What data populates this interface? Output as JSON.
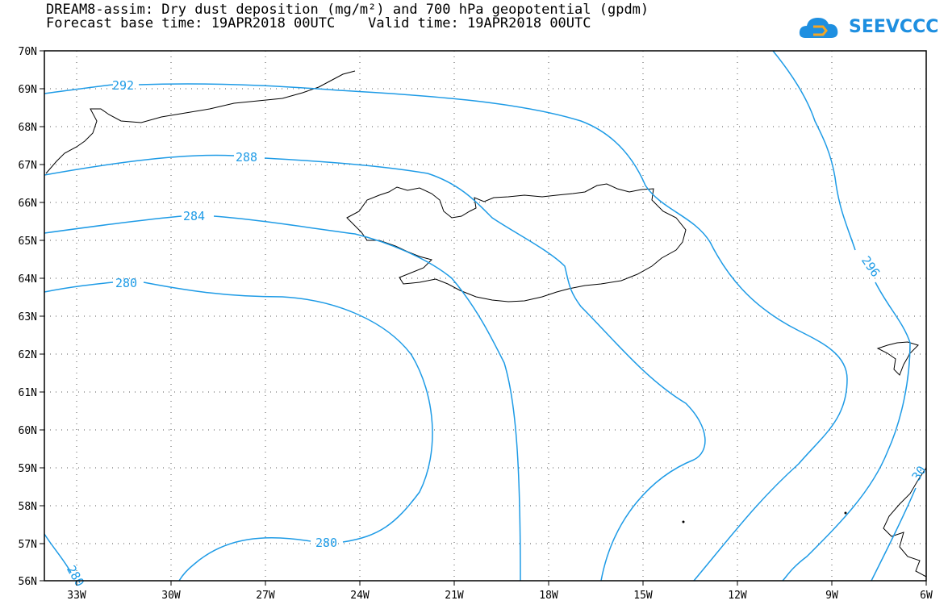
{
  "header": {
    "line1": "DREAM8-assim: Dry dust deposition (mg/m²) and 700 hPa geopotential (gpdm)",
    "line2": "Forecast base time: 19APR2018 00UTC    Valid time: 19APR2018 00UTC"
  },
  "logo": {
    "text": "SEEVCCC",
    "icon": "cloud-icon",
    "color": "#1e8fe0"
  },
  "map": {
    "lat_labels": [
      "70N",
      "69N",
      "68N",
      "67N",
      "66N",
      "65N",
      "64N",
      "63N",
      "62N",
      "61N",
      "60N",
      "59N",
      "58N",
      "57N",
      "56N"
    ],
    "lon_labels": [
      "33W",
      "30W",
      "27W",
      "24W",
      "21W",
      "18W",
      "15W",
      "12W",
      "9W",
      "6W"
    ],
    "contour_color": "#1e9be6",
    "contour_labels": [
      "292",
      "288",
      "284",
      "280",
      "280",
      "296",
      "280",
      "30"
    ]
  }
}
